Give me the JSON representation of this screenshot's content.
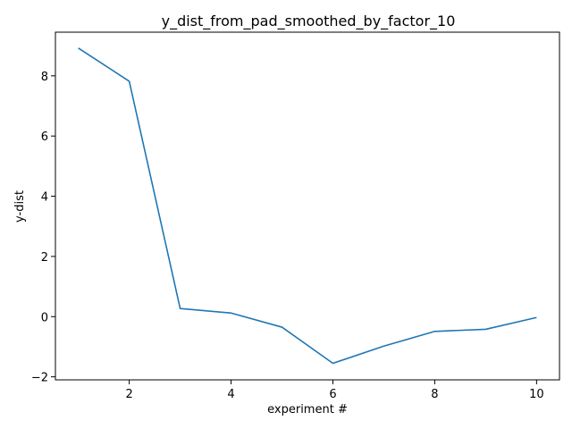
{
  "chart_data": {
    "type": "line",
    "title": "y_dist_from_pad_smoothed_by_factor_10",
    "xlabel": "experiment #",
    "ylabel": "y-dist",
    "xlim": [
      0.55,
      10.45
    ],
    "ylim": [
      -2.1,
      9.45
    ],
    "xticks": [
      2,
      4,
      6,
      8,
      10
    ],
    "yticks": [
      -2,
      0,
      2,
      4,
      6,
      8
    ],
    "grid": false,
    "series": [
      {
        "color": "#1f77b4",
        "x": [
          1,
          2,
          3,
          4,
          5,
          6,
          7,
          8,
          9,
          10
        ],
        "y": [
          8.92,
          7.82,
          0.27,
          0.12,
          -0.35,
          -1.55,
          -0.98,
          -0.49,
          -0.42,
          -0.03
        ]
      }
    ]
  }
}
